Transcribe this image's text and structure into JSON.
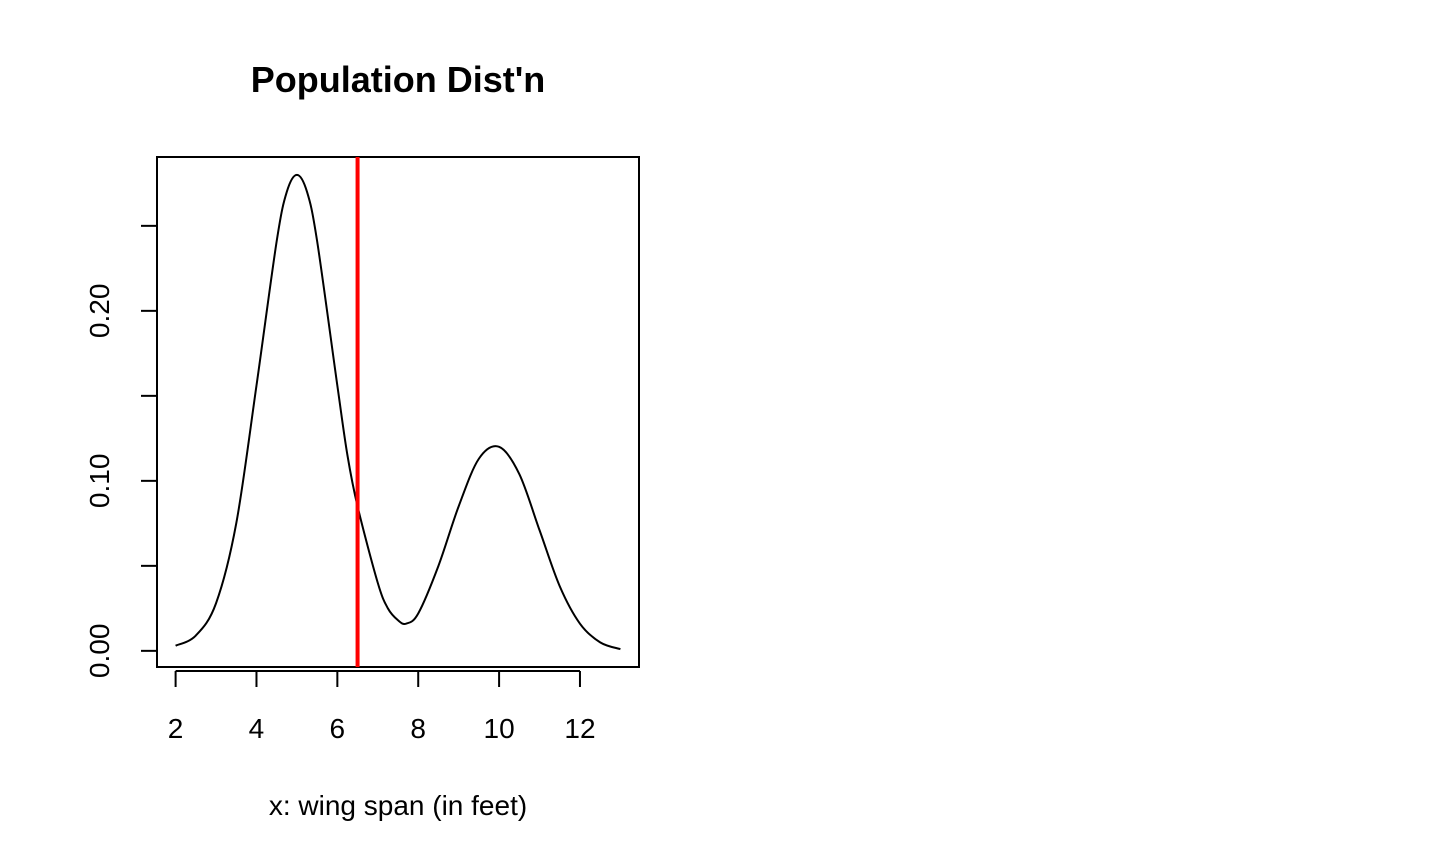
{
  "chart_data": {
    "type": "line",
    "title": "Population Dist'n",
    "xlabel": "x: wing span (in feet)",
    "ylabel": "",
    "xlim": [
      1.54,
      13.46
    ],
    "ylim": [
      -0.0095,
      0.2905
    ],
    "x_ticks": [
      2,
      4,
      6,
      8,
      10,
      12
    ],
    "x_tick_labels": [
      "2",
      "4",
      "6",
      "8",
      "10",
      "12"
    ],
    "y_ticks": [
      0.0,
      0.05,
      0.1,
      0.15,
      0.2,
      0.25
    ],
    "y_tick_labels": [
      "0.00",
      "",
      "0.10",
      "",
      "0.20",
      ""
    ],
    "grid": false,
    "series": [
      {
        "color": "#000000",
        "x": [
          2.0,
          2.5,
          3.0,
          3.5,
          4.0,
          4.5,
          4.75,
          5.0,
          5.25,
          5.5,
          6.0,
          6.25,
          6.5,
          7.0,
          7.25,
          7.5,
          7.7,
          8.0,
          8.5,
          9.0,
          9.5,
          10.0,
          10.5,
          11.0,
          11.5,
          12.0,
          12.5,
          13.0
        ],
        "y": [
          0.003,
          0.009,
          0.028,
          0.075,
          0.156,
          0.241,
          0.27,
          0.28,
          0.27,
          0.241,
          0.156,
          0.115,
          0.085,
          0.04,
          0.025,
          0.018,
          0.016,
          0.022,
          0.05,
          0.085,
          0.113,
          0.12,
          0.104,
          0.071,
          0.038,
          0.016,
          0.005,
          0.001
        ]
      }
    ],
    "vline": {
      "x": 6.5,
      "color": "#ff0000"
    }
  }
}
